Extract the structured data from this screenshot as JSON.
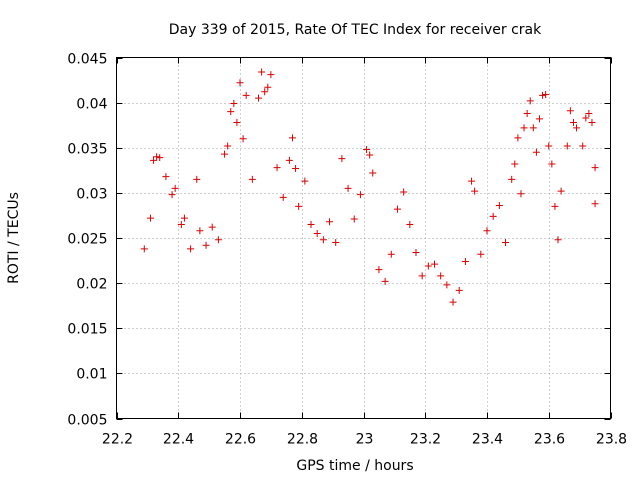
{
  "chart_data": {
    "type": "scatter",
    "title": "Day 339 of 2015, Rate Of TEC Index for receiver crak",
    "xlabel": "GPS time / hours",
    "ylabel": "ROTI / TECUs",
    "xlim": [
      22.2,
      23.8
    ],
    "ylim": [
      0.005,
      0.045
    ],
    "x_ticks": [
      22.2,
      22.4,
      22.6,
      22.8,
      23.0,
      23.2,
      23.4,
      23.6,
      23.8
    ],
    "x_tick_labels": [
      "22.2",
      "22.4",
      "22.6",
      "22.8",
      "23",
      "23.2",
      "23.4",
      "23.6",
      "23.8"
    ],
    "y_ticks": [
      0.005,
      0.01,
      0.015,
      0.02,
      0.025,
      0.03,
      0.035,
      0.04,
      0.045
    ],
    "y_tick_labels": [
      "0.005",
      "0.01",
      "0.015",
      "0.02",
      "0.025",
      "0.03",
      "0.035",
      "0.04",
      "0.045"
    ],
    "grid": true,
    "marker": "+",
    "marker_color": "#dd0000",
    "series": [
      {
        "points": [
          [
            22.29,
            0.0238
          ],
          [
            22.31,
            0.0272
          ],
          [
            22.32,
            0.0336
          ],
          [
            22.33,
            0.034
          ],
          [
            22.34,
            0.0339
          ],
          [
            22.36,
            0.0318
          ],
          [
            22.38,
            0.0298
          ],
          [
            22.39,
            0.0305
          ],
          [
            22.41,
            0.0265
          ],
          [
            22.42,
            0.0272
          ],
          [
            22.44,
            0.0238
          ],
          [
            22.46,
            0.0315
          ],
          [
            22.47,
            0.0258
          ],
          [
            22.49,
            0.0242
          ],
          [
            22.51,
            0.0262
          ],
          [
            22.53,
            0.0248
          ],
          [
            22.55,
            0.0343
          ],
          [
            22.56,
            0.0352
          ],
          [
            22.57,
            0.039
          ],
          [
            22.58,
            0.0399
          ],
          [
            22.59,
            0.0378
          ],
          [
            22.6,
            0.0422
          ],
          [
            22.61,
            0.036
          ],
          [
            22.62,
            0.0408
          ],
          [
            22.64,
            0.0315
          ],
          [
            22.66,
            0.0405
          ],
          [
            22.67,
            0.0434
          ],
          [
            22.68,
            0.0412
          ],
          [
            22.69,
            0.0417
          ],
          [
            22.7,
            0.0431
          ],
          [
            22.72,
            0.0328
          ],
          [
            22.74,
            0.0295
          ],
          [
            22.76,
            0.0336
          ],
          [
            22.77,
            0.0361
          ],
          [
            22.78,
            0.0327
          ],
          [
            22.79,
            0.0285
          ],
          [
            22.81,
            0.0313
          ],
          [
            22.83,
            0.0265
          ],
          [
            22.85,
            0.0255
          ],
          [
            22.87,
            0.0248
          ],
          [
            22.89,
            0.0268
          ],
          [
            22.91,
            0.0245
          ],
          [
            22.93,
            0.0338
          ],
          [
            22.95,
            0.0305
          ],
          [
            22.97,
            0.0271
          ],
          [
            22.99,
            0.0298
          ],
          [
            23.01,
            0.0348
          ],
          [
            23.02,
            0.0342
          ],
          [
            23.03,
            0.0322
          ],
          [
            23.05,
            0.0215
          ],
          [
            23.07,
            0.0202
          ],
          [
            23.09,
            0.0232
          ],
          [
            23.11,
            0.0282
          ],
          [
            23.13,
            0.0301
          ],
          [
            23.15,
            0.0265
          ],
          [
            23.17,
            0.0234
          ],
          [
            23.19,
            0.0208
          ],
          [
            23.21,
            0.0219
          ],
          [
            23.23,
            0.0221
          ],
          [
            23.25,
            0.0208
          ],
          [
            23.27,
            0.0198
          ],
          [
            23.29,
            0.0179
          ],
          [
            23.31,
            0.0192
          ],
          [
            23.33,
            0.0224
          ],
          [
            23.35,
            0.0313
          ],
          [
            23.36,
            0.0302
          ],
          [
            23.38,
            0.0232
          ],
          [
            23.4,
            0.0258
          ],
          [
            23.42,
            0.0274
          ],
          [
            23.44,
            0.0286
          ],
          [
            23.46,
            0.0245
          ],
          [
            23.48,
            0.0315
          ],
          [
            23.49,
            0.0332
          ],
          [
            23.5,
            0.0361
          ],
          [
            23.51,
            0.0299
          ],
          [
            23.52,
            0.0372
          ],
          [
            23.53,
            0.0388
          ],
          [
            23.54,
            0.0402
          ],
          [
            23.55,
            0.0372
          ],
          [
            23.56,
            0.0345
          ],
          [
            23.57,
            0.0382
          ],
          [
            23.58,
            0.0408
          ],
          [
            23.59,
            0.0409
          ],
          [
            23.6,
            0.0352
          ],
          [
            23.61,
            0.0332
          ],
          [
            23.62,
            0.0285
          ],
          [
            23.63,
            0.0248
          ],
          [
            23.64,
            0.0302
          ],
          [
            23.66,
            0.0352
          ],
          [
            23.67,
            0.0391
          ],
          [
            23.68,
            0.0378
          ],
          [
            23.69,
            0.0372
          ],
          [
            23.71,
            0.0352
          ],
          [
            23.72,
            0.0383
          ],
          [
            23.73,
            0.0388
          ],
          [
            23.74,
            0.0378
          ],
          [
            23.75,
            0.0328
          ],
          [
            23.75,
            0.0288
          ]
        ]
      }
    ]
  }
}
